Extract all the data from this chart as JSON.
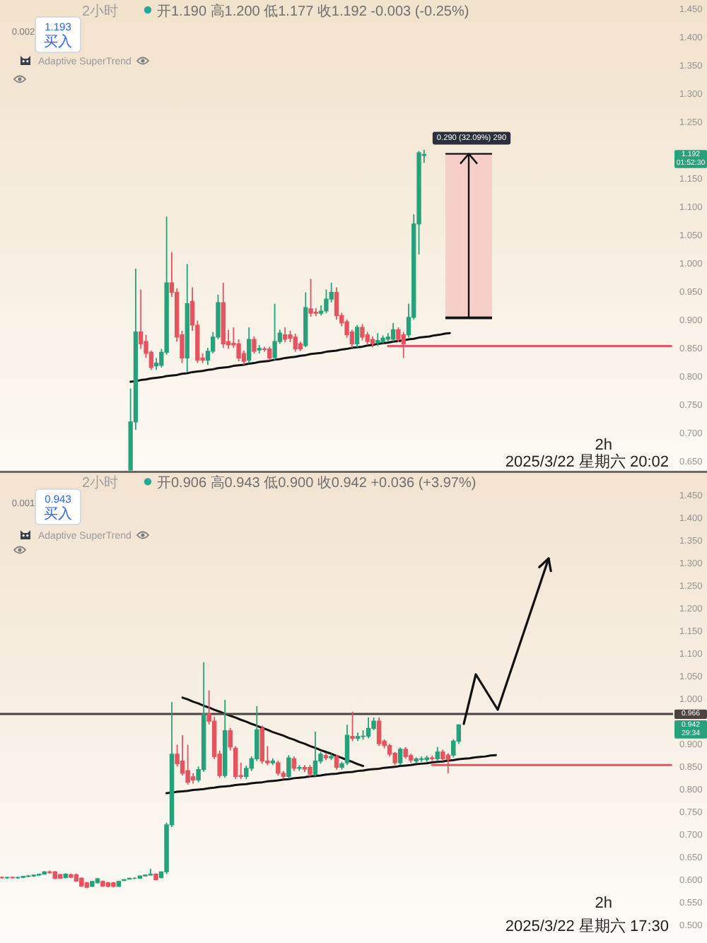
{
  "chart_data": [
    {
      "type": "candlestick",
      "categories": [
        null,
        null,
        null,
        null,
        null,
        null,
        null,
        null,
        null,
        null,
        null,
        null,
        null,
        null,
        null,
        null,
        null,
        null,
        null,
        null,
        null,
        null,
        null,
        null,
        null,
        null,
        null,
        null,
        null,
        null,
        null,
        null,
        null,
        null,
        null,
        null,
        null,
        null,
        null,
        null,
        null,
        null,
        null,
        null,
        null,
        null,
        null,
        null,
        null,
        null,
        null,
        null,
        null,
        null,
        null,
        null,
        null,
        null,
        null,
        null,
        null,
        null,
        null,
        null,
        null,
        null,
        null,
        null,
        null,
        null,
        null,
        null,
        null,
        null,
        null,
        null,
        null,
        null,
        null,
        null,
        null,
        null,
        null,
        null,
        null,
        null,
        null,
        null,
        null,
        null,
        null,
        null,
        null,
        null,
        null,
        null,
        null,
        null,
        null,
        null,
        null,
        null,
        null,
        null,
        null,
        null,
        null,
        null,
        null,
        null,
        null,
        null,
        null,
        null,
        null,
        null,
        null,
        null,
        null,
        null,
        null,
        null,
        null,
        null,
        null,
        null,
        null,
        null,
        null,
        null,
        null
      ],
      "ohlc": [
        null,
        null,
        null,
        null,
        null,
        null,
        null,
        null,
        null,
        null,
        null,
        null,
        null,
        null,
        null,
        null,
        null,
        null,
        null,
        null,
        null,
        null,
        null,
        null,
        null,
        [
          0.634,
          0.778,
          0.633,
          0.719
        ],
        [
          0.719,
          0.99,
          0.705,
          0.878
        ],
        [
          0.878,
          0.953,
          0.848,
          0.857
        ],
        [
          0.861,
          0.873,
          0.832,
          0.84
        ],
        [
          0.842,
          0.845,
          0.811,
          0.815
        ],
        [
          0.818,
          0.832,
          0.811,
          0.823
        ],
        [
          0.819,
          0.848,
          0.815,
          0.842
        ],
        [
          0.842,
          1.082,
          0.838,
          0.965
        ],
        [
          0.965,
          1.019,
          0.94,
          0.948
        ],
        [
          0.948,
          0.955,
          0.861,
          0.869
        ],
        [
          0.873,
          0.88,
          0.823,
          0.832
        ],
        [
          0.832,
          0.998,
          0.807,
          0.928
        ],
        [
          0.932,
          0.957,
          0.88,
          0.89
        ],
        [
          0.89,
          0.898,
          0.823,
          0.828
        ],
        [
          0.832,
          0.84,
          0.823,
          0.828
        ],
        [
          0.828,
          0.85,
          0.82,
          0.844
        ],
        [
          0.844,
          0.878,
          0.84,
          0.869
        ],
        [
          0.869,
          0.944,
          0.865,
          0.93
        ],
        [
          0.93,
          0.965,
          0.85,
          0.857
        ],
        [
          0.861,
          0.882,
          0.848,
          0.855
        ],
        [
          0.858,
          0.886,
          0.85,
          0.855
        ],
        [
          0.857,
          0.865,
          0.826,
          0.832
        ],
        [
          0.84,
          0.845,
          0.82,
          0.826
        ],
        [
          0.828,
          0.886,
          0.823,
          0.865
        ],
        [
          0.865,
          0.87,
          0.84,
          0.844
        ],
        [
          0.846,
          0.855,
          0.84,
          0.849
        ],
        [
          0.848,
          0.852,
          0.843,
          0.847
        ],
        [
          0.848,
          0.852,
          0.828,
          0.832
        ],
        [
          0.833,
          0.928,
          0.828,
          0.861
        ],
        [
          0.861,
          0.882,
          0.857,
          0.876
        ],
        [
          0.873,
          0.886,
          0.86,
          0.865
        ],
        [
          0.873,
          0.88,
          0.86,
          0.867
        ],
        [
          0.869,
          0.875,
          0.843,
          0.848
        ],
        [
          0.857,
          0.861,
          0.844,
          0.848
        ],
        [
          0.854,
          0.948,
          0.851,
          0.921
        ],
        [
          0.919,
          0.972,
          0.905,
          0.911
        ],
        [
          0.913,
          0.92,
          0.906,
          0.911
        ],
        [
          0.911,
          0.925,
          0.907,
          0.915
        ],
        [
          0.915,
          0.953,
          0.911,
          0.936
        ],
        [
          0.936,
          0.965,
          0.93,
          0.948
        ],
        [
          0.948,
          0.957,
          0.9,
          0.907
        ],
        [
          0.907,
          0.912,
          0.888,
          0.894
        ],
        [
          0.896,
          0.9,
          0.868,
          0.873
        ],
        [
          0.878,
          0.882,
          0.85,
          0.857
        ],
        [
          0.857,
          0.89,
          0.851,
          0.886
        ],
        [
          0.886,
          0.892,
          0.863,
          0.869
        ],
        [
          0.873,
          0.878,
          0.855,
          0.861
        ],
        [
          0.865,
          0.87,
          0.851,
          0.857
        ],
        [
          0.859,
          0.876,
          0.853,
          0.863
        ],
        [
          0.861,
          0.872,
          0.857,
          0.867
        ],
        [
          0.865,
          0.876,
          0.861,
          0.869
        ],
        [
          0.865,
          0.894,
          0.861,
          0.882
        ],
        [
          0.882,
          0.886,
          0.86,
          0.865
        ],
        [
          0.873,
          0.878,
          0.832,
          0.857
        ],
        [
          0.873,
          0.928,
          0.868,
          0.904
        ],
        [
          0.904,
          1.086,
          0.9,
          1.069
        ],
        [
          1.069,
          1.198,
          1.015,
          1.195
        ],
        [
          1.19,
          1.2,
          1.177,
          1.192
        ],
        null,
        null,
        null,
        null,
        null,
        null,
        null,
        null,
        null,
        null,
        null,
        null,
        null,
        null,
        null,
        null,
        null,
        null,
        null,
        null,
        null,
        null,
        null,
        null,
        null,
        null,
        null,
        null,
        null,
        null,
        null,
        null,
        null,
        null,
        null,
        null,
        null,
        null,
        null,
        null,
        null,
        null,
        null,
        null,
        null,
        null,
        null,
        null
      ],
      "ylim": [
        0.6325,
        1.465
      ],
      "yticks": [
        {
          "value": 0.65,
          "label": "0.650"
        },
        {
          "value": 0.7,
          "label": "0.700"
        },
        {
          "value": 0.75,
          "label": "0.750"
        },
        {
          "value": 0.8,
          "label": "0.800"
        },
        {
          "value": 0.85,
          "label": "0.850"
        },
        {
          "value": 0.9,
          "label": "0.900"
        },
        {
          "value": 0.95,
          "label": "0.950"
        },
        {
          "value": 1.0,
          "label": "1.000"
        },
        {
          "value": 1.05,
          "label": "1.050"
        },
        {
          "value": 1.1,
          "label": "1.100"
        },
        {
          "value": 1.15,
          "label": "1.150"
        },
        {
          "value": 1.25,
          "label": "1.250"
        },
        {
          "value": 1.3,
          "label": "1.300"
        },
        {
          "value": 1.35,
          "label": "1.350"
        },
        {
          "value": 1.4,
          "label": "1.400"
        },
        {
          "value": 1.45,
          "label": "1.450"
        }
      ],
      "tick_labels": "y",
      "series": [
        {
          "type": "line",
          "color": "#111111",
          "values": [
            null,
            null,
            null,
            null,
            null,
            null,
            null,
            null,
            null,
            null,
            null,
            null,
            null,
            null,
            null,
            null,
            null,
            null,
            null,
            null,
            null,
            null,
            null,
            null,
            null,
            0.79,
            0.791,
            0.793,
            0.794,
            0.796,
            0.797,
            0.798,
            0.8,
            0.801,
            0.802,
            0.804,
            0.805,
            0.807,
            0.808,
            0.809,
            0.811,
            0.812,
            0.814,
            0.815,
            0.816,
            0.818,
            0.819,
            0.82,
            0.822,
            0.823,
            0.825,
            0.826,
            0.827,
            0.829,
            0.83,
            0.832,
            0.833,
            0.834,
            0.836,
            0.837,
            0.839,
            0.84,
            0.841,
            0.843,
            0.844,
            0.845,
            0.847,
            0.848,
            0.85,
            0.851,
            0.852,
            0.854,
            0.855,
            0.857,
            0.858,
            0.859,
            0.861,
            0.862,
            0.863,
            0.865,
            0.866,
            0.868,
            0.869,
            0.87,
            0.872,
            0.873,
            0.875,
            0.876,
            null,
            null,
            null,
            null,
            null,
            null,
            null,
            null,
            null,
            null,
            null,
            null,
            null,
            null,
            null,
            null,
            null,
            null,
            null,
            null,
            null,
            null,
            null,
            null,
            null,
            null,
            null,
            null,
            null,
            null,
            null,
            null,
            null,
            null,
            null,
            null,
            null,
            null,
            null,
            null,
            null,
            null,
            null
          ]
        },
        {
          "type": "line",
          "color": "#e2576b",
          "values": [
            null,
            null,
            null,
            null,
            null,
            null,
            null,
            null,
            null,
            null,
            null,
            null,
            null,
            null,
            null,
            null,
            null,
            null,
            null,
            null,
            null,
            null,
            null,
            null,
            null,
            null,
            null,
            null,
            null,
            null,
            null,
            null,
            null,
            null,
            null,
            null,
            null,
            null,
            null,
            null,
            null,
            null,
            null,
            null,
            null,
            null,
            null,
            null,
            null,
            null,
            null,
            null,
            null,
            null,
            null,
            null,
            null,
            null,
            null,
            null,
            null,
            null,
            null,
            null,
            null,
            null,
            null,
            null,
            null,
            null,
            null,
            null,
            null,
            null,
            null,
            0.853,
            0.853,
            0.853,
            0.853,
            0.853,
            0.853,
            0.853,
            0.853,
            0.853,
            0.853,
            0.853,
            0.853,
            0.853,
            0.853,
            0.853,
            0.853,
            0.853,
            0.853,
            0.853,
            0.853,
            0.853,
            0.853,
            0.853,
            0.853,
            0.853,
            0.853,
            0.853,
            0.853,
            0.853,
            0.853,
            0.853,
            0.853,
            0.853,
            0.853,
            0.853,
            0.853,
            0.853,
            0.853,
            0.853,
            0.853,
            0.853,
            0.853,
            0.853,
            0.853,
            0.853,
            0.853,
            0.853,
            0.853,
            0.853,
            0.853,
            0.853,
            0.853,
            0.853,
            0.853,
            0.853,
            0.853
          ]
        }
      ],
      "bands": [
        {
          "axis": "y",
          "from": 0.903,
          "to": 1.193,
          "label": "0.290 (32.09%) 290",
          "color": "#f6cfc8"
        }
      ],
      "annotations": [
        "2小时",
        "开1.190 高1.200 低1.177 收1.192 -0.003 (-0.25%)",
        "0.002",
        "1.193\n买入",
        "Adaptive SuperTrend",
        "2h",
        "2025/3/22 星期六 20:02",
        "1.192\n01:52:30"
      ]
    },
    {
      "type": "candlestick",
      "categories": [
        null,
        null,
        null,
        null,
        null,
        null,
        null,
        null,
        null,
        null,
        null,
        null,
        null,
        null,
        null,
        null,
        null,
        null,
        null,
        null,
        null,
        null,
        null,
        null,
        null,
        null,
        null,
        null,
        null,
        null,
        null,
        null,
        null,
        null,
        null,
        null,
        null,
        null,
        null,
        null,
        null,
        null,
        null,
        null,
        null,
        null,
        null,
        null,
        null,
        null,
        null,
        null,
        null,
        null,
        null,
        null,
        null,
        null,
        null,
        null,
        null,
        null,
        null,
        null,
        null,
        null,
        null,
        null,
        null,
        null,
        null,
        null,
        null,
        null,
        null,
        null,
        null,
        null,
        null,
        null,
        null,
        null,
        null,
        null,
        null,
        null,
        null,
        null,
        null,
        null,
        null,
        null,
        null,
        null,
        null,
        null,
        null,
        null,
        null,
        null,
        null,
        null,
        null,
        null,
        null,
        null,
        null,
        null,
        null,
        null,
        null,
        null,
        null,
        null,
        null,
        null,
        null,
        null,
        null,
        null,
        null,
        null,
        null,
        null,
        null,
        null,
        null
      ],
      "ohlc": [
        [
          0.605,
          0.607,
          0.602,
          0.604
        ],
        [
          0.604,
          0.606,
          0.602,
          0.605
        ],
        [
          0.605,
          0.607,
          0.603,
          0.604
        ],
        [
          0.604,
          0.606,
          0.602,
          0.605
        ],
        [
          0.605,
          0.608,
          0.603,
          0.607
        ],
        [
          0.607,
          0.61,
          0.605,
          0.608
        ],
        [
          0.608,
          0.611,
          0.606,
          0.61
        ],
        [
          0.61,
          0.613,
          0.608,
          0.612
        ],
        [
          0.612,
          0.619,
          0.611,
          0.617
        ],
        [
          0.617,
          0.62,
          0.613,
          0.615
        ],
        [
          0.617,
          0.619,
          0.601,
          0.603
        ],
        [
          0.611,
          0.613,
          0.602,
          0.603
        ],
        [
          0.604,
          0.614,
          0.603,
          0.612
        ],
        [
          0.611,
          0.613,
          0.604,
          0.605
        ],
        [
          0.611,
          0.613,
          0.595,
          0.597
        ],
        [
          0.603,
          0.605,
          0.584,
          0.586
        ],
        [
          0.593,
          0.595,
          0.581,
          0.583
        ],
        [
          0.585,
          0.597,
          0.584,
          0.596
        ],
        [
          0.593,
          0.604,
          0.592,
          0.602
        ],
        [
          0.596,
          0.598,
          0.584,
          0.586
        ],
        [
          0.593,
          0.595,
          0.583,
          0.585
        ],
        [
          0.593,
          0.595,
          0.583,
          0.585
        ],
        [
          0.585,
          0.597,
          0.584,
          0.596
        ],
        [
          0.598,
          0.601,
          0.597,
          0.6
        ],
        [
          0.601,
          0.604,
          0.6,
          0.603
        ],
        [
          0.603,
          0.605,
          0.601,
          0.603
        ],
        [
          0.603,
          0.609,
          0.602,
          0.608
        ],
        [
          0.608,
          0.611,
          0.607,
          0.61
        ],
        [
          0.61,
          0.624,
          0.609,
          0.612
        ],
        [
          0.612,
          0.614,
          0.598,
          0.6
        ],
        [
          0.604,
          0.618,
          0.603,
          0.617
        ],
        [
          0.617,
          0.726,
          0.612,
          0.721
        ],
        [
          0.721,
          0.992,
          0.716,
          0.877
        ],
        [
          0.877,
          0.898,
          0.85,
          0.856
        ],
        [
          0.862,
          0.919,
          0.83,
          0.835
        ],
        [
          0.841,
          0.898,
          0.81,
          0.815
        ],
        [
          0.827,
          0.835,
          0.812,
          0.82
        ],
        [
          0.82,
          0.85,
          0.815,
          0.843
        ],
        [
          0.843,
          1.08,
          0.838,
          0.966
        ],
        [
          0.966,
          1.018,
          0.943,
          0.95
        ],
        [
          0.95,
          0.96,
          0.866,
          0.872
        ],
        [
          0.877,
          0.885,
          0.825,
          0.83
        ],
        [
          0.83,
          0.997,
          0.825,
          0.929
        ],
        [
          0.929,
          0.935,
          0.885,
          0.893
        ],
        [
          0.89,
          0.895,
          0.822,
          0.828
        ],
        [
          0.83,
          0.858,
          0.822,
          0.828
        ],
        [
          0.828,
          0.852,
          0.822,
          0.846
        ],
        [
          0.846,
          0.872,
          0.84,
          0.867
        ],
        [
          0.867,
          0.983,
          0.862,
          0.931
        ],
        [
          0.934,
          0.94,
          0.856,
          0.862
        ],
        [
          0.862,
          0.895,
          0.853,
          0.858
        ],
        [
          0.858,
          0.868,
          0.853,
          0.862
        ],
        [
          0.858,
          0.863,
          0.83,
          0.835
        ],
        [
          0.835,
          0.84,
          0.823,
          0.828
        ],
        [
          0.828,
          0.875,
          0.823,
          0.869
        ],
        [
          0.867,
          0.872,
          0.84,
          0.846
        ],
        [
          0.846,
          0.853,
          0.84,
          0.848
        ],
        [
          0.848,
          0.853,
          0.838,
          0.844
        ],
        [
          0.848,
          0.853,
          0.828,
          0.833
        ],
        [
          0.833,
          0.927,
          0.828,
          0.862
        ],
        [
          0.862,
          0.882,
          0.856,
          0.877
        ],
        [
          0.874,
          0.88,
          0.864,
          0.869
        ],
        [
          0.869,
          0.878,
          0.864,
          0.872
        ],
        [
          0.872,
          0.876,
          0.843,
          0.848
        ],
        [
          0.848,
          0.86,
          0.843,
          0.856
        ],
        [
          0.858,
          0.942,
          0.853,
          0.919
        ],
        [
          0.916,
          0.971,
          0.906,
          0.912
        ],
        [
          0.912,
          0.925,
          0.906,
          0.916
        ],
        [
          0.916,
          0.93,
          0.909,
          0.917
        ],
        [
          0.917,
          0.958,
          0.912,
          0.934
        ],
        [
          0.934,
          0.958,
          0.93,
          0.95
        ],
        [
          0.95,
          0.958,
          0.895,
          0.9
        ],
        [
          0.906,
          0.91,
          0.89,
          0.896
        ],
        [
          0.896,
          0.9,
          0.872,
          0.877
        ],
        [
          0.879,
          0.882,
          0.853,
          0.858
        ],
        [
          0.858,
          0.892,
          0.853,
          0.888
        ],
        [
          0.888,
          0.893,
          0.867,
          0.872
        ],
        [
          0.874,
          0.878,
          0.858,
          0.864
        ],
        [
          0.862,
          0.87,
          0.857,
          0.867
        ],
        [
          0.865,
          0.872,
          0.86,
          0.867
        ],
        [
          0.865,
          0.874,
          0.86,
          0.869
        ],
        [
          0.869,
          0.874,
          0.862,
          0.867
        ],
        [
          0.867,
          0.893,
          0.862,
          0.882
        ],
        [
          0.882,
          0.887,
          0.862,
          0.867
        ],
        [
          0.875,
          0.879,
          0.835,
          0.865
        ],
        [
          0.875,
          0.91,
          0.87,
          0.906
        ],
        [
          0.906,
          0.943,
          0.9,
          0.942
        ],
        null,
        null,
        null,
        null,
        null,
        null,
        null,
        null,
        null,
        null,
        null,
        null,
        null,
        null,
        null,
        null,
        null,
        null,
        null,
        null,
        null,
        null,
        null,
        null,
        null,
        null,
        null,
        null,
        null,
        null,
        null,
        null,
        null,
        null,
        null,
        null,
        null,
        null,
        null,
        null
      ],
      "ylim": [
        0.46,
        1.503
      ],
      "yticks": [
        {
          "value": 0.5,
          "label": "0.500"
        },
        {
          "value": 0.55,
          "label": "0.550"
        },
        {
          "value": 0.6,
          "label": "0.600"
        },
        {
          "value": 0.65,
          "label": "0.650"
        },
        {
          "value": 0.7,
          "label": "0.700"
        },
        {
          "value": 0.75,
          "label": "0.750"
        },
        {
          "value": 0.8,
          "label": "0.800"
        },
        {
          "value": 0.85,
          "label": "0.850"
        },
        {
          "value": 0.9,
          "label": "0.900"
        },
        {
          "value": 1.0,
          "label": "1.000"
        },
        {
          "value": 1.05,
          "label": "1.050"
        },
        {
          "value": 1.1,
          "label": "1.100"
        },
        {
          "value": 1.15,
          "label": "1.150"
        },
        {
          "value": 1.2,
          "label": "1.200"
        },
        {
          "value": 1.25,
          "label": "1.250"
        },
        {
          "value": 1.3,
          "label": "1.300"
        },
        {
          "value": 1.35,
          "label": "1.350"
        },
        {
          "value": 1.4,
          "label": "1.400"
        },
        {
          "value": 1.45,
          "label": "1.450"
        }
      ],
      "tick_labels": "y",
      "series": [
        {
          "type": "line",
          "color": "#111111",
          "values": [
            null,
            null,
            null,
            null,
            null,
            null,
            null,
            null,
            null,
            null,
            null,
            null,
            null,
            null,
            null,
            null,
            null,
            null,
            null,
            null,
            null,
            null,
            null,
            null,
            null,
            null,
            null,
            null,
            null,
            null,
            null,
            0.791,
            0.792,
            0.794,
            0.795,
            0.796,
            0.798,
            0.799,
            0.8,
            0.802,
            0.803,
            0.805,
            0.806,
            0.807,
            0.809,
            0.81,
            0.811,
            0.813,
            0.814,
            0.815,
            0.817,
            0.818,
            0.819,
            0.821,
            0.822,
            0.824,
            0.825,
            0.826,
            0.828,
            0.829,
            0.83,
            0.832,
            0.833,
            0.834,
            0.836,
            0.837,
            0.838,
            0.84,
            0.841,
            0.843,
            0.844,
            0.845,
            0.847,
            0.848,
            0.849,
            0.851,
            0.852,
            0.853,
            0.855,
            0.856,
            0.857,
            0.859,
            0.86,
            0.861,
            0.863,
            0.864,
            0.866,
            0.867,
            0.868,
            0.87,
            0.871,
            0.872,
            0.874,
            0.875,
            null,
            null,
            null,
            null,
            null,
            null,
            null,
            null,
            null,
            null,
            null,
            null,
            null,
            null,
            null,
            null,
            null,
            null,
            null,
            null,
            null,
            null,
            null,
            null,
            null,
            null,
            null,
            null,
            null,
            null,
            null,
            null,
            null
          ]
        },
        {
          "type": "line",
          "color": "#111111",
          "values": [
            null,
            null,
            null,
            null,
            null,
            null,
            null,
            null,
            null,
            null,
            null,
            null,
            null,
            null,
            null,
            null,
            null,
            null,
            null,
            null,
            null,
            null,
            null,
            null,
            null,
            null,
            null,
            null,
            null,
            null,
            null,
            null,
            null,
            null,
            1.002,
            0.998,
            0.993,
            0.989,
            0.984,
            0.98,
            0.975,
            0.971,
            0.966,
            0.962,
            0.958,
            0.953,
            0.949,
            0.944,
            0.94,
            0.935,
            0.931,
            0.926,
            0.922,
            0.918,
            0.913,
            0.909,
            0.904,
            0.9,
            0.895,
            0.891,
            0.886,
            0.882,
            0.878,
            0.873,
            0.869,
            0.864,
            0.86,
            0.855,
            0.851,
            null,
            null,
            null,
            null,
            null,
            null,
            null,
            null,
            null,
            null,
            null,
            null,
            null,
            null,
            null,
            null,
            null,
            null,
            null,
            null,
            null,
            null,
            null,
            null,
            null,
            null,
            null,
            null,
            null,
            null,
            null,
            null,
            null,
            null,
            null,
            null,
            null,
            null,
            null,
            null,
            null,
            null,
            null,
            null,
            null,
            null,
            null,
            null,
            null,
            null,
            null,
            null,
            null,
            null,
            null,
            null,
            null,
            null
          ]
        },
        {
          "type": "line",
          "color": "#e2576b",
          "values": [
            null,
            null,
            null,
            null,
            null,
            null,
            null,
            null,
            null,
            null,
            null,
            null,
            null,
            null,
            null,
            null,
            null,
            null,
            null,
            null,
            null,
            null,
            null,
            null,
            null,
            null,
            null,
            null,
            null,
            null,
            null,
            null,
            null,
            null,
            null,
            null,
            null,
            null,
            null,
            null,
            null,
            null,
            null,
            null,
            null,
            null,
            null,
            null,
            null,
            null,
            null,
            null,
            null,
            null,
            null,
            null,
            null,
            null,
            null,
            null,
            null,
            null,
            null,
            null,
            null,
            null,
            null,
            null,
            null,
            null,
            null,
            null,
            null,
            null,
            null,
            null,
            null,
            null,
            null,
            null,
            null,
            0.853,
            0.853,
            0.853,
            0.853,
            0.853,
            0.853,
            0.853,
            0.853,
            0.853,
            0.853,
            0.853,
            0.853,
            0.853,
            0.853,
            0.853,
            0.853,
            0.853,
            0.853,
            0.853,
            0.853,
            0.853,
            0.853,
            0.853,
            0.853,
            0.853,
            0.853,
            0.853,
            0.853,
            0.853,
            0.853,
            0.853,
            0.853,
            0.853,
            0.853,
            0.853,
            0.853,
            0.853,
            0.853,
            0.853,
            0.853,
            0.853,
            0.853,
            0.853,
            0.853,
            0.853,
            0.853
          ]
        }
      ],
      "ref_lines": [
        {
          "axis": "y",
          "value": 0.966,
          "label": "0.966",
          "color": "#4a4340"
        }
      ],
      "annotations": [
        "2小时",
        "开0.906 高0.943 低0.900 收0.942 +0.036 (+3.97%)",
        "0.001",
        "0.943\n买入",
        "Adaptive SuperTrend",
        "2h",
        "2025/3/22 星期六 17:30",
        "0.942\n29:34"
      ]
    }
  ]
}
